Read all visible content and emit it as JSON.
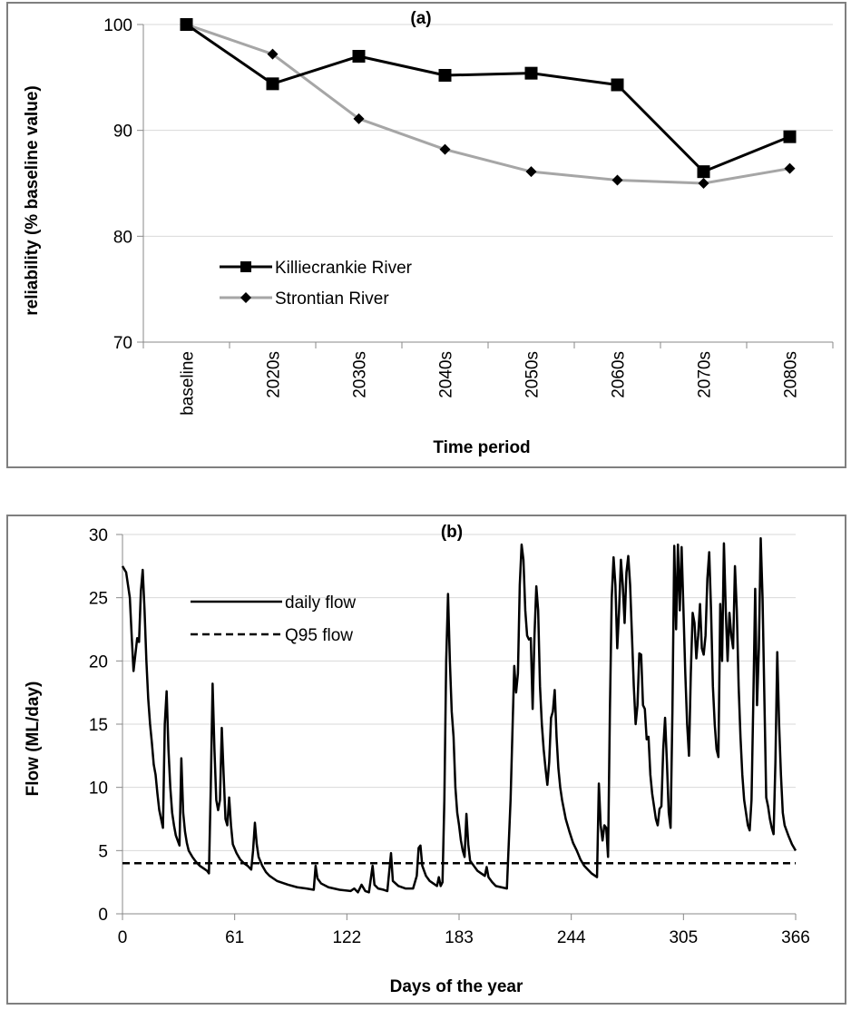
{
  "chart_data": [
    {
      "type": "line",
      "title": "(a)",
      "xlabel": "Time period",
      "ylabel": "reliability (% baseline value)",
      "categories": [
        "baseline",
        "2020s",
        "2030s",
        "2040s",
        "2050s",
        "2060s",
        "2070s",
        "2080s"
      ],
      "ylim": [
        70,
        100
      ],
      "yticks": [
        "70",
        "80",
        "90",
        "100"
      ],
      "grid": true,
      "legend": "bottom-left",
      "series": [
        {
          "name": "Killiecrankie River",
          "color": "#000000",
          "marker": "square",
          "values": [
            100,
            94.4,
            97.0,
            95.2,
            95.4,
            94.3,
            86.1,
            89.4
          ]
        },
        {
          "name": "Strontian River",
          "color": "#a6a6a6",
          "marker": "diamond",
          "values": [
            100,
            97.2,
            91.1,
            88.2,
            86.1,
            85.3,
            85.0,
            86.4
          ]
        }
      ]
    },
    {
      "type": "line",
      "title": "(b)",
      "xlabel": "Days of the year",
      "ylabel": "Flow (ML/day)",
      "xlim": [
        0,
        366
      ],
      "xticks": [
        "0",
        "61",
        "122",
        "183",
        "244",
        "305",
        "366"
      ],
      "ylim": [
        0,
        30
      ],
      "yticks": [
        "0",
        "5",
        "10",
        "15",
        "20",
        "25",
        "30"
      ],
      "grid": true,
      "legend": "top-left",
      "series": [
        {
          "name": "daily flow",
          "style": "solid",
          "color": "#000000",
          "points": [
            [
              0,
              27.5
            ],
            [
              2,
              27
            ],
            [
              4,
              25
            ],
            [
              5,
              22
            ],
            [
              6,
              19.2
            ],
            [
              7,
              20.5
            ],
            [
              8,
              21.8
            ],
            [
              9,
              21.5
            ],
            [
              10,
              25.5
            ],
            [
              11,
              27.2
            ],
            [
              12,
              24
            ],
            [
              13,
              20
            ],
            [
              14,
              17
            ],
            [
              15,
              15
            ],
            [
              16,
              13.5
            ],
            [
              17,
              11.8
            ],
            [
              18,
              11
            ],
            [
              19,
              9.5
            ],
            [
              20,
              8.2
            ],
            [
              21,
              7.5
            ],
            [
              22,
              6.8
            ],
            [
              23,
              15
            ],
            [
              24,
              17.6
            ],
            [
              25,
              13
            ],
            [
              26,
              10
            ],
            [
              27,
              8
            ],
            [
              28,
              7
            ],
            [
              29,
              6.2
            ],
            [
              30,
              5.8
            ],
            [
              31,
              5.4
            ],
            [
              32,
              12.3
            ],
            [
              33,
              8
            ],
            [
              34,
              6.5
            ],
            [
              35,
              5.6
            ],
            [
              36,
              5.0
            ],
            [
              38,
              4.5
            ],
            [
              40,
              4.1
            ],
            [
              42,
              3.8
            ],
            [
              44,
              3.6
            ],
            [
              46,
              3.4
            ],
            [
              47,
              3.2
            ],
            [
              48,
              10
            ],
            [
              49,
              18.2
            ],
            [
              50,
              13
            ],
            [
              51,
              9
            ],
            [
              52,
              8.2
            ],
            [
              53,
              9
            ],
            [
              54,
              14.7
            ],
            [
              55,
              11
            ],
            [
              56,
              7.5
            ],
            [
              57,
              7
            ],
            [
              58,
              9.2
            ],
            [
              59,
              7
            ],
            [
              60,
              5.5
            ],
            [
              62,
              4.8
            ],
            [
              64,
              4.3
            ],
            [
              66,
              4
            ],
            [
              68,
              3.8
            ],
            [
              70,
              3.5
            ],
            [
              71,
              5
            ],
            [
              72,
              7.2
            ],
            [
              73,
              5.5
            ],
            [
              74,
              4.5
            ],
            [
              76,
              3.8
            ],
            [
              78,
              3.3
            ],
            [
              80,
              3.0
            ],
            [
              82,
              2.8
            ],
            [
              84,
              2.6
            ],
            [
              86,
              2.5
            ],
            [
              90,
              2.3
            ],
            [
              95,
              2.1
            ],
            [
              100,
              2.0
            ],
            [
              104,
              1.9
            ],
            [
              105,
              3.8
            ],
            [
              106,
              2.8
            ],
            [
              108,
              2.4
            ],
            [
              112,
              2.1
            ],
            [
              118,
              1.9
            ],
            [
              124,
              1.8
            ],
            [
              126,
              2.0
            ],
            [
              128,
              1.7
            ],
            [
              130,
              2.3
            ],
            [
              132,
              1.8
            ],
            [
              134,
              1.7
            ],
            [
              136,
              3.8
            ],
            [
              137,
              2.3
            ],
            [
              139,
              2.0
            ],
            [
              142,
              1.9
            ],
            [
              144,
              1.8
            ],
            [
              146,
              4.8
            ],
            [
              147,
              2.6
            ],
            [
              150,
              2.2
            ],
            [
              154,
              2.0
            ],
            [
              158,
              2.0
            ],
            [
              160,
              3.0
            ],
            [
              161,
              5.2
            ],
            [
              162,
              5.4
            ],
            [
              163,
              3.8
            ],
            [
              165,
              3.0
            ],
            [
              167,
              2.6
            ],
            [
              169,
              2.4
            ],
            [
              171,
              2.2
            ],
            [
              172,
              2.9
            ],
            [
              173,
              2.2
            ],
            [
              174,
              2.5
            ],
            [
              175,
              9
            ],
            [
              176,
              20
            ],
            [
              177,
              25.3
            ],
            [
              178,
              20
            ],
            [
              179,
              16
            ],
            [
              180,
              14
            ],
            [
              181,
              10
            ],
            [
              182,
              8
            ],
            [
              183,
              7
            ],
            [
              184,
              5.8
            ],
            [
              185,
              5.0
            ],
            [
              186,
              4.5
            ],
            [
              187,
              7.9
            ],
            [
              188,
              5.5
            ],
            [
              189,
              4.2
            ],
            [
              191,
              3.8
            ],
            [
              193,
              3.4
            ],
            [
              195,
              3.2
            ],
            [
              197,
              3.0
            ],
            [
              198,
              3.7
            ],
            [
              199,
              2.9
            ],
            [
              201,
              2.5
            ],
            [
              203,
              2.2
            ],
            [
              206,
              2.1
            ],
            [
              209,
              2.0
            ],
            [
              211,
              9
            ],
            [
              213,
              19.6
            ],
            [
              214,
              17.5
            ],
            [
              215,
              19
            ],
            [
              216,
              26
            ],
            [
              217,
              29.2
            ],
            [
              218,
              28
            ],
            [
              219,
              24
            ],
            [
              220,
              22
            ],
            [
              221,
              21.7
            ],
            [
              222,
              21.8
            ],
            [
              223,
              16.2
            ],
            [
              224,
              22
            ],
            [
              225,
              25.9
            ],
            [
              226,
              24
            ],
            [
              227,
              18
            ],
            [
              228,
              15
            ],
            [
              229,
              13
            ],
            [
              230,
              11.5
            ],
            [
              231,
              10.2
            ],
            [
              232,
              12
            ],
            [
              233,
              15.5
            ],
            [
              234,
              16
            ],
            [
              235,
              17.7
            ],
            [
              236,
              14
            ],
            [
              237,
              11.5
            ],
            [
              238,
              10
            ],
            [
              239,
              9
            ],
            [
              241,
              7.5
            ],
            [
              243,
              6.5
            ],
            [
              245,
              5.6
            ],
            [
              247,
              5.0
            ],
            [
              249,
              4.3
            ],
            [
              251,
              3.8
            ],
            [
              253,
              3.5
            ],
            [
              255,
              3.2
            ],
            [
              257,
              3.0
            ],
            [
              258,
              2.9
            ],
            [
              259,
              10.3
            ],
            [
              260,
              7
            ],
            [
              261,
              5.8
            ],
            [
              262,
              7
            ],
            [
              263,
              6.8
            ],
            [
              264,
              4.5
            ],
            [
              265,
              16
            ],
            [
              266,
              25
            ],
            [
              267,
              28.2
            ],
            [
              268,
              26
            ],
            [
              269,
              21
            ],
            [
              270,
              24
            ],
            [
              271,
              28
            ],
            [
              272,
              26
            ],
            [
              273,
              23
            ],
            [
              274,
              27
            ],
            [
              275,
              28.3
            ],
            [
              276,
              26
            ],
            [
              277,
              22
            ],
            [
              278,
              18
            ],
            [
              279,
              15
            ],
            [
              280,
              16.5
            ],
            [
              281,
              20.6
            ],
            [
              282,
              20.5
            ],
            [
              283,
              16.5
            ],
            [
              284,
              16.2
            ],
            [
              285,
              13.8
            ],
            [
              286,
              14
            ],
            [
              287,
              11
            ],
            [
              288,
              9.5
            ],
            [
              289,
              8.5
            ],
            [
              290,
              7.5
            ],
            [
              291,
              7.0
            ],
            [
              292,
              8.3
            ],
            [
              293,
              8.5
            ],
            [
              294,
              13
            ],
            [
              295,
              15.5
            ],
            [
              296,
              12
            ],
            [
              297,
              8
            ],
            [
              298,
              6.8
            ],
            [
              299,
              16
            ],
            [
              300,
              29.1
            ],
            [
              301,
              22.5
            ],
            [
              302,
              29.2
            ],
            [
              303,
              24
            ],
            [
              304,
              29.0
            ],
            [
              305,
              24
            ],
            [
              306,
              19
            ],
            [
              307,
              15
            ],
            [
              308,
              12.5
            ],
            [
              309,
              19
            ],
            [
              310,
              23.8
            ],
            [
              311,
              23
            ],
            [
              312,
              20.2
            ],
            [
              313,
              22
            ],
            [
              314,
              24.5
            ],
            [
              315,
              21
            ],
            [
              316,
              20.5
            ],
            [
              317,
              22
            ],
            [
              318,
              26.5
            ],
            [
              319,
              28.6
            ],
            [
              320,
              24
            ],
            [
              321,
              18
            ],
            [
              322,
              15
            ],
            [
              323,
              13
            ],
            [
              324,
              12.4
            ],
            [
              325,
              24.5
            ],
            [
              326,
              20
            ],
            [
              327,
              29.3
            ],
            [
              328,
              24
            ],
            [
              329,
              20
            ],
            [
              330,
              23.8
            ],
            [
              331,
              22
            ],
            [
              332,
              21
            ],
            [
              333,
              27.5
            ],
            [
              334,
              24
            ],
            [
              335,
              18
            ],
            [
              336,
              14
            ],
            [
              337,
              11
            ],
            [
              338,
              9
            ],
            [
              339,
              8
            ],
            [
              340,
              7
            ],
            [
              341,
              6.6
            ],
            [
              342,
              9
            ],
            [
              343,
              17
            ],
            [
              344,
              25.7
            ],
            [
              345,
              16.5
            ],
            [
              346,
              21
            ],
            [
              347,
              29.7
            ],
            [
              348,
              25
            ],
            [
              349,
              17
            ],
            [
              350,
              9.2
            ],
            [
              351,
              8.5
            ],
            [
              352,
              7.5
            ],
            [
              353,
              6.8
            ],
            [
              354,
              6.3
            ],
            [
              355,
              12
            ],
            [
              356,
              20.7
            ],
            [
              357,
              15
            ],
            [
              358,
              11
            ],
            [
              359,
              8
            ],
            [
              360,
              7
            ],
            [
              362,
              6.2
            ],
            [
              364,
              5.5
            ],
            [
              366,
              5.0
            ]
          ]
        },
        {
          "name": "Q95 flow",
          "style": "dashed",
          "color": "#000000",
          "points": [
            [
              0,
              4.0
            ],
            [
              366,
              4.0
            ]
          ]
        }
      ]
    }
  ]
}
